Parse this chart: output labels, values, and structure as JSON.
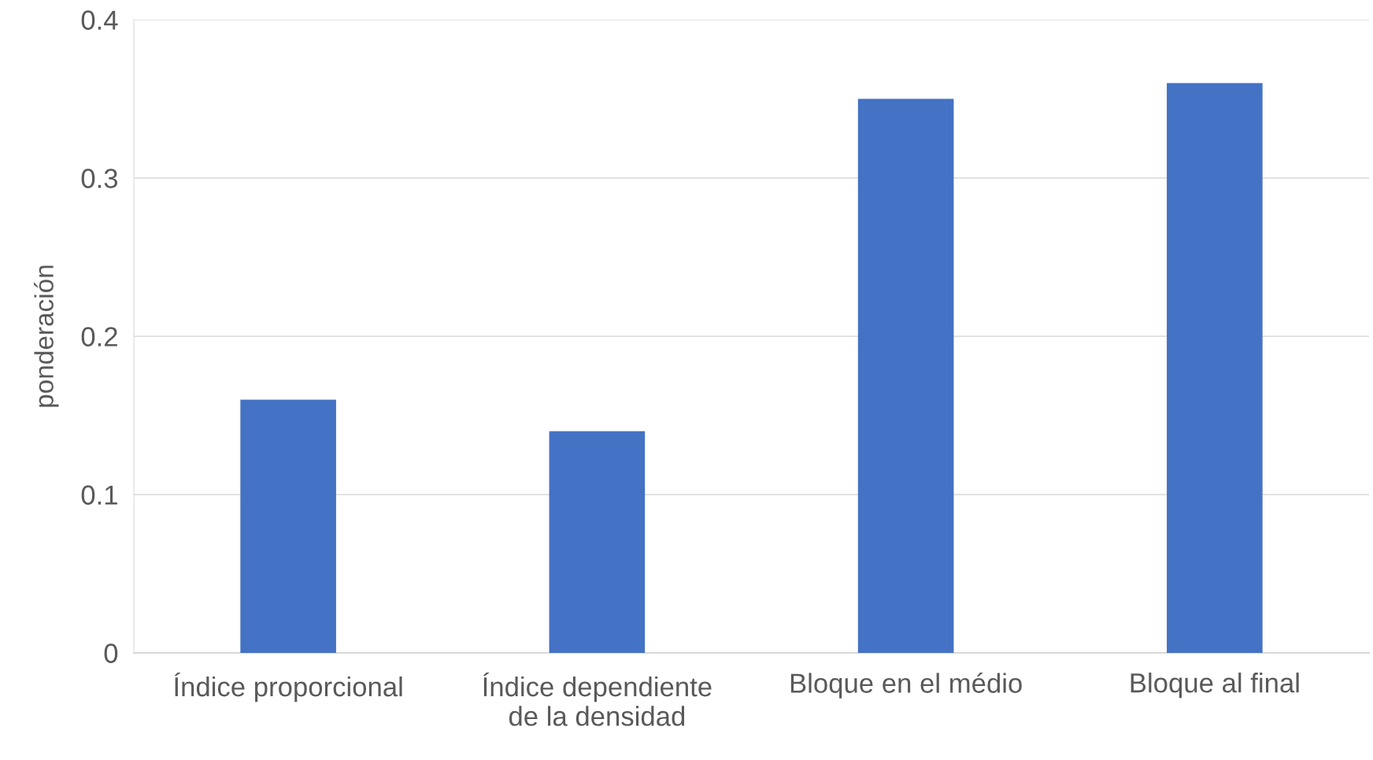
{
  "chart_data": {
    "type": "bar",
    "ylabel": "ponderación",
    "categories": [
      "Índice proporcional",
      "Índice dependiente de la densidad",
      "Bloque en el médio",
      "Bloque al final"
    ],
    "values": [
      0.16,
      0.14,
      0.35,
      0.36
    ],
    "color": "#4472c4",
    "ylim": [
      0,
      0.4
    ],
    "yticks": [
      0,
      0.1,
      0.2,
      0.3,
      0.4
    ],
    "grid": "y"
  }
}
